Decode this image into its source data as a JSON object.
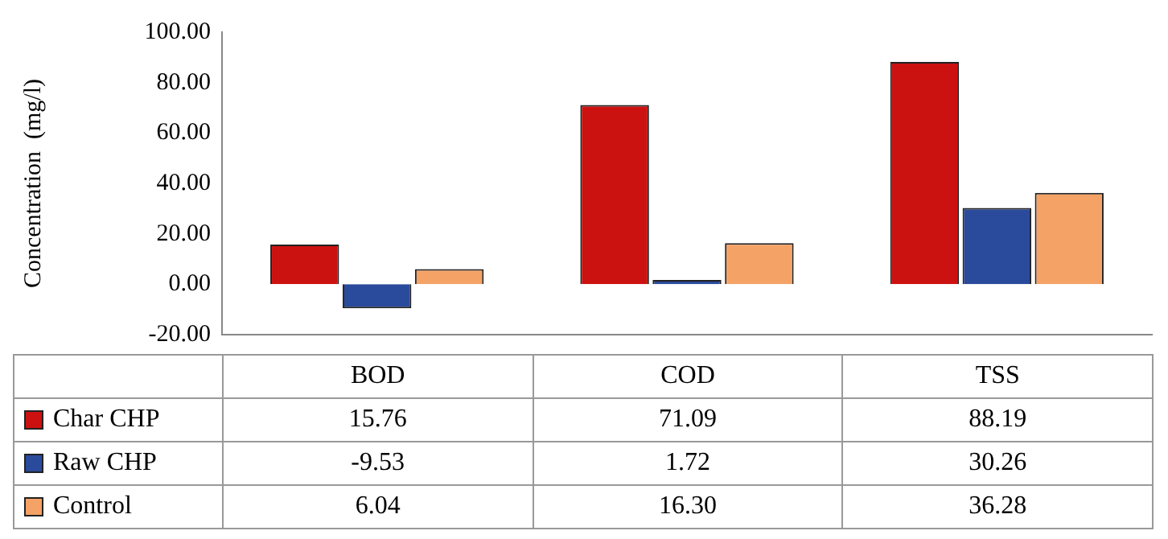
{
  "chart_data": {
    "type": "bar",
    "ylabel": "Concentration  (mg/l)",
    "categories": [
      "BOD",
      "COD",
      "TSS"
    ],
    "series": [
      {
        "name": "Char CHP",
        "color": "#cc1111",
        "values": [
          15.76,
          71.09,
          88.19
        ],
        "value_labels": [
          "15.76",
          "71.09",
          "88.19"
        ]
      },
      {
        "name": "Raw CHP",
        "color": "#2a4a9c",
        "values": [
          -9.53,
          1.72,
          30.26
        ],
        "value_labels": [
          "-9.53",
          "1.72",
          "30.26"
        ]
      },
      {
        "name": "Control",
        "color": "#f4a266",
        "values": [
          6.04,
          16.3,
          36.28
        ],
        "value_labels": [
          "6.04",
          "16.30",
          "36.28"
        ]
      }
    ],
    "ylim": [
      -20,
      100
    ],
    "yticks": [
      {
        "value": -20,
        "label": "-20.00"
      },
      {
        "value": 0,
        "label": "0.00"
      },
      {
        "value": 20,
        "label": "20.00"
      },
      {
        "value": 40,
        "label": "40.00"
      },
      {
        "value": 60,
        "label": "60.00"
      },
      {
        "value": 80,
        "label": "80.00"
      },
      {
        "value": 100,
        "label": "100.00"
      }
    ],
    "legend": "left",
    "grid": false
  }
}
